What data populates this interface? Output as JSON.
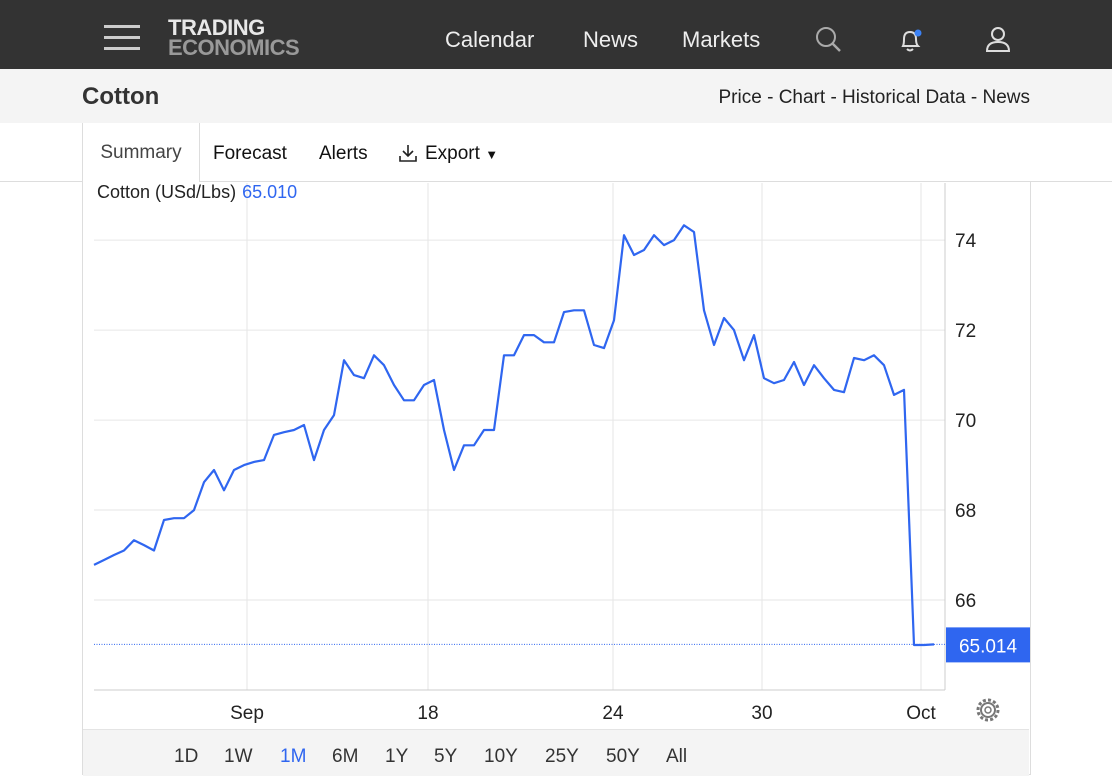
{
  "nav": {
    "logo": [
      "TRADING",
      "ECONOMICS"
    ],
    "links": [
      "Calendar",
      "News",
      "Markets"
    ]
  },
  "header": {
    "title": "Cotton",
    "links": [
      "Price",
      "Chart",
      "Historical Data",
      "News"
    ],
    "separator": "-"
  },
  "tabs": [
    "Summary",
    "Forecast",
    "Alerts",
    "Export"
  ],
  "ranges": [
    "1D",
    "1W",
    "1M",
    "6M",
    "1Y",
    "5Y",
    "10Y",
    "25Y",
    "50Y",
    "All"
  ],
  "selected_range": "1M",
  "chart_data": {
    "type": "line",
    "label": "Cotton (USd/Lbs)",
    "current": {
      "value": 65.01,
      "label": "65.010"
    },
    "last_value": 65.014,
    "color": "#2f66f0",
    "values": [
      66.78,
      66.89,
      67.0,
      67.1,
      67.33,
      67.22,
      67.1,
      67.78,
      67.82,
      67.82,
      68.0,
      68.62,
      68.89,
      68.44,
      68.89,
      69.0,
      69.07,
      69.11,
      69.67,
      69.73,
      69.78,
      69.89,
      69.11,
      69.78,
      70.11,
      71.33,
      71.0,
      70.93,
      71.44,
      71.22,
      70.78,
      70.44,
      70.44,
      70.78,
      70.89,
      69.78,
      68.89,
      69.44,
      69.44,
      69.78,
      69.78,
      71.44,
      71.44,
      71.89,
      71.89,
      71.73,
      71.73,
      72.4,
      72.44,
      72.44,
      71.67,
      71.6,
      72.22,
      74.11,
      73.67,
      73.78,
      74.11,
      73.89,
      74.0,
      74.33,
      74.18,
      72.44,
      71.67,
      72.27,
      72.0,
      71.33,
      71.89,
      70.93,
      70.82,
      70.89,
      71.29,
      70.78,
      71.22,
      70.93,
      70.67,
      70.62,
      71.38,
      71.33,
      71.44,
      71.22,
      70.56,
      70.67,
      65.0,
      65.0,
      65.014
    ],
    "xlim": [
      0,
      84
    ],
    "xticks": [
      {
        "value": 15.3,
        "label": "Sep"
      },
      {
        "value": 33.4,
        "label": "18"
      },
      {
        "value": 51.9,
        "label": "24"
      },
      {
        "value": 66.8,
        "label": "30"
      },
      {
        "value": 82.7,
        "label": "Oct"
      }
    ],
    "ylim": [
      64,
      75.27
    ],
    "yticks": [
      66,
      68,
      70,
      72,
      74
    ],
    "grid": true
  }
}
